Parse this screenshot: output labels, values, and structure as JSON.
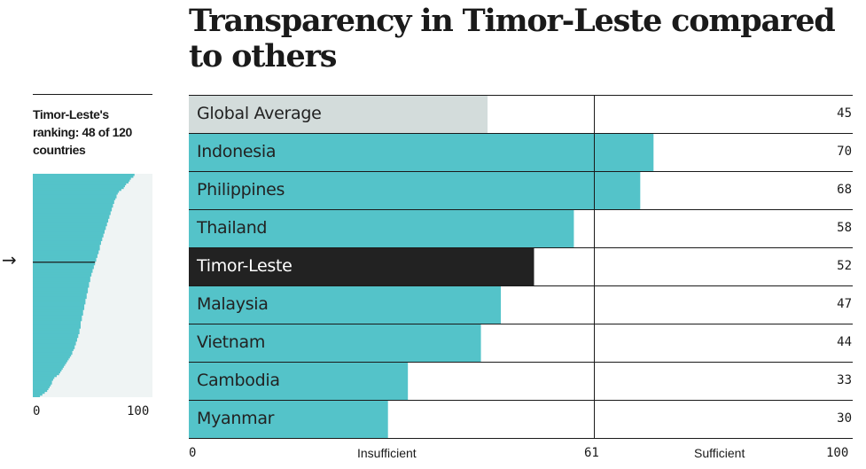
{
  "title": "Transparency in Timor-Leste compared to others",
  "ranking": {
    "label": "Timor-Leste's ranking: 48 of 120 countries",
    "arrow": "→",
    "axis_min": "0",
    "axis_max": "100"
  },
  "chart_data": {
    "type": "bar",
    "orientation": "horizontal",
    "title": "Transparency in Timor-Leste compared to others",
    "categories": [
      "Global Average",
      "Indonesia",
      "Philippines",
      "Thailand",
      "Timor-Leste",
      "Malaysia",
      "Vietnam",
      "Cambodia",
      "Myanmar"
    ],
    "values": [
      45,
      70,
      68,
      58,
      52,
      47,
      44,
      33,
      30
    ],
    "value_labels": [
      "45",
      "70",
      "68",
      "58",
      "52",
      "47",
      "44",
      "33",
      "30"
    ],
    "xlim": [
      0,
      100
    ],
    "threshold": 61,
    "threshold_label": "61",
    "axis_labels": {
      "min": "0",
      "max": "100",
      "left_zone": "Insufficient",
      "right_zone": "Sufficient"
    },
    "bar_colors": {
      "Global Average": "#d3dcdb",
      "Timor-Leste": "#222222",
      "default": "#54c3c9"
    },
    "label_colors": {
      "Timor-Leste": "#ffffff",
      "default": "#222222"
    }
  },
  "mini_chart_data": {
    "type": "bar",
    "orientation": "horizontal",
    "description_label": "Timor-Leste's ranking: 48 of 120 countries",
    "count": 120,
    "highlight_rank": 48,
    "highlight_value": 52,
    "xlim": [
      0,
      100
    ],
    "values_sorted_desc": [
      85,
      84,
      82,
      81,
      80,
      78,
      77,
      76,
      74,
      72,
      71,
      70,
      70,
      69,
      68,
      68,
      67,
      67,
      66,
      66,
      65,
      65,
      64,
      64,
      63,
      63,
      62,
      62,
      61,
      61,
      60,
      60,
      59,
      59,
      58,
      58,
      57,
      57,
      56,
      56,
      56,
      55,
      55,
      54,
      54,
      53,
      53,
      52,
      52,
      51,
      51,
      50,
      50,
      49,
      49,
      48,
      48,
      48,
      47,
      47,
      47,
      46,
      46,
      46,
      45,
      45,
      45,
      44,
      44,
      44,
      43,
      43,
      43,
      42,
      42,
      42,
      41,
      41,
      41,
      40,
      40,
      40,
      40,
      39,
      39,
      39,
      38,
      38,
      37,
      37,
      36,
      36,
      35,
      35,
      34,
      33,
      33,
      32,
      31,
      30,
      29,
      28,
      27,
      26,
      25,
      24,
      23,
      22,
      20,
      18,
      17,
      16,
      16,
      15,
      14,
      13,
      12,
      10,
      8,
      6
    ],
    "bar_color": "#54c3c9",
    "background_color": "#eff4f4"
  }
}
